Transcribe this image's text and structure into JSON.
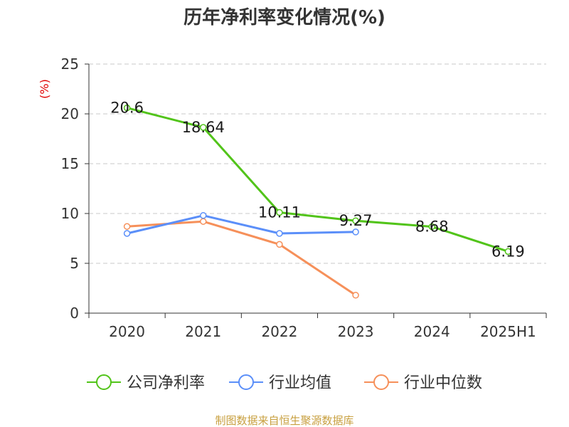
{
  "chart_data": {
    "type": "line",
    "title": "历年净利率变化情况(%)",
    "ylabel": "(%)",
    "xlabel": "",
    "categories": [
      "2020",
      "2021",
      "2022",
      "2023",
      "2024",
      "2025H1"
    ],
    "ylim": [
      0,
      25
    ],
    "yticks": [
      0,
      5,
      10,
      15,
      20,
      25
    ],
    "grid": true,
    "legend_position": "bottom",
    "series": [
      {
        "name": "公司净利率",
        "color": "#52c41a",
        "values": [
          20.6,
          18.64,
          10.11,
          9.27,
          8.68,
          6.19
        ],
        "labels": [
          "20.6",
          "18.64",
          "10.11",
          "9.27",
          "8.68",
          "6.19"
        ]
      },
      {
        "name": "行业均值",
        "color": "#5b8ff9",
        "values": [
          8.0,
          9.8,
          8.0,
          8.15,
          null,
          null
        ]
      },
      {
        "name": "行业中位数",
        "color": "#f6905a",
        "values": [
          8.7,
          9.2,
          6.9,
          1.8,
          null,
          null
        ]
      }
    ]
  },
  "source": "制图数据来自恒生聚源数据库"
}
